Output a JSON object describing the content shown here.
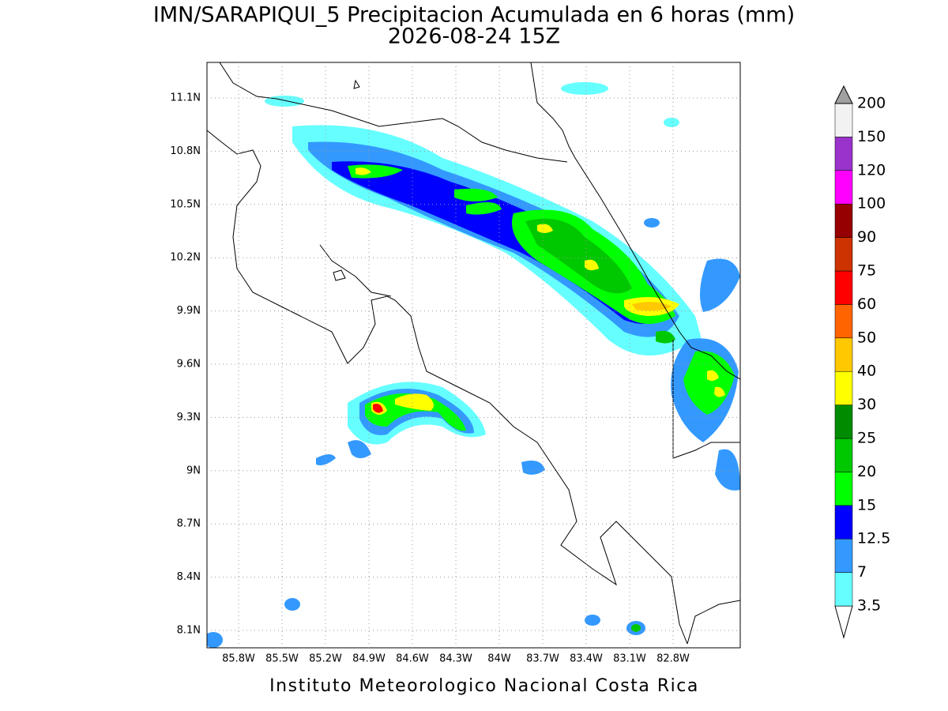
{
  "title": "IMN/SARAPIQUI_5 Precipitacion Acumulada en 6 horas (mm)",
  "subtitle": "2026-08-24 15Z",
  "footer": "Instituto Meteorologico Nacional Costa Rica",
  "map": {
    "lon_labels": [
      "85.8W",
      "85.5W",
      "85.2W",
      "84.9W",
      "84.6W",
      "84.3W",
      "84W",
      "83.7W",
      "83.4W",
      "83.1W",
      "82.8W"
    ],
    "lat_labels": [
      "11.1N",
      "10.8N",
      "10.5N",
      "10.2N",
      "9.9N",
      "9.6N",
      "9.3N",
      "9N",
      "8.7N",
      "8.4N",
      "8.1N"
    ]
  },
  "colorbar": {
    "levels": [
      3.5,
      7,
      12.5,
      15,
      20,
      25,
      30,
      40,
      50,
      60,
      75,
      90,
      100,
      120,
      150,
      200
    ],
    "colors": [
      "#ffffff",
      "#66ffff",
      "#3399ff",
      "#0000ff",
      "#00ff00",
      "#00c800",
      "#008c00",
      "#ffff00",
      "#ffc800",
      "#ff6400",
      "#ff0000",
      "#cc3300",
      "#960000",
      "#ff00ff",
      "#9933cc",
      "#f2f2f2",
      "#a0a0a0"
    ]
  }
}
